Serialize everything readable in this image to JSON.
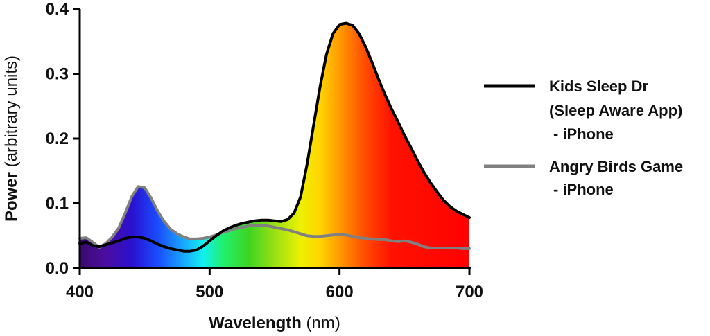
{
  "chart_data": {
    "type": "line",
    "title": "",
    "xlabel": {
      "bold": "Wavelength",
      "rest": " (nm)"
    },
    "ylabel": {
      "bold": "Power",
      "rest": " (arbitrary units)"
    },
    "xlim": [
      400,
      700
    ],
    "ylim": [
      0,
      0.4
    ],
    "xticks": [
      400,
      500,
      600,
      700
    ],
    "xtick_labels": [
      "400",
      "500",
      "600",
      "700"
    ],
    "yticks": [
      0,
      0.1,
      0.2,
      0.3,
      0.4
    ],
    "ytick_labels": [
      "0.0",
      "0.1",
      "0.2",
      "0.3",
      "0.4"
    ],
    "fill": "visible-spectrum gradient under the upper envelope of both series",
    "spectrum_colors": [
      {
        "nm": 400,
        "color": "#3a0a6e"
      },
      {
        "nm": 420,
        "color": "#4b0ea0"
      },
      {
        "nm": 440,
        "color": "#2a10d0"
      },
      {
        "nm": 460,
        "color": "#1a4cff"
      },
      {
        "nm": 480,
        "color": "#18a8ff"
      },
      {
        "nm": 495,
        "color": "#12f0f0"
      },
      {
        "nm": 510,
        "color": "#20f070"
      },
      {
        "nm": 530,
        "color": "#3ed422"
      },
      {
        "nm": 550,
        "color": "#98e014"
      },
      {
        "nm": 570,
        "color": "#eef000"
      },
      {
        "nm": 585,
        "color": "#ffd400"
      },
      {
        "nm": 600,
        "color": "#ff9a00"
      },
      {
        "nm": 620,
        "color": "#ff4a00"
      },
      {
        "nm": 640,
        "color": "#ff1200"
      },
      {
        "nm": 700,
        "color": "#ff0000"
      }
    ],
    "series": [
      {
        "name": "Kids Sleep Dr (Sleep Aware App) - iPhone",
        "legend_lines": [
          "Kids Sleep Dr",
          "(Sleep Aware App)",
          " - iPhone"
        ],
        "color": "#000000",
        "x": [
          400,
          405,
          410,
          415,
          420,
          425,
          430,
          435,
          440,
          445,
          450,
          455,
          460,
          465,
          470,
          475,
          480,
          485,
          490,
          495,
          500,
          505,
          510,
          515,
          520,
          525,
          530,
          535,
          540,
          545,
          550,
          555,
          560,
          565,
          570,
          575,
          580,
          585,
          590,
          595,
          600,
          605,
          610,
          615,
          620,
          625,
          630,
          635,
          640,
          645,
          650,
          655,
          660,
          665,
          670,
          675,
          680,
          685,
          690,
          695,
          700
        ],
        "y": [
          0.038,
          0.04,
          0.035,
          0.033,
          0.036,
          0.039,
          0.042,
          0.046,
          0.048,
          0.048,
          0.046,
          0.042,
          0.037,
          0.033,
          0.03,
          0.028,
          0.026,
          0.026,
          0.028,
          0.034,
          0.042,
          0.05,
          0.057,
          0.062,
          0.066,
          0.069,
          0.071,
          0.073,
          0.074,
          0.074,
          0.073,
          0.072,
          0.075,
          0.085,
          0.11,
          0.16,
          0.22,
          0.28,
          0.33,
          0.362,
          0.376,
          0.378,
          0.375,
          0.362,
          0.342,
          0.318,
          0.292,
          0.268,
          0.246,
          0.226,
          0.205,
          0.186,
          0.166,
          0.148,
          0.132,
          0.118,
          0.105,
          0.095,
          0.088,
          0.083,
          0.078
        ]
      },
      {
        "name": "Angry Birds Game - iPhone",
        "legend_lines": [
          "Angry Birds Game",
          " - iPhone"
        ],
        "color": "#808080",
        "x": [
          400,
          405,
          410,
          415,
          420,
          425,
          430,
          435,
          440,
          445,
          450,
          455,
          460,
          465,
          470,
          475,
          480,
          485,
          490,
          495,
          500,
          505,
          510,
          515,
          520,
          525,
          530,
          535,
          540,
          545,
          550,
          555,
          560,
          565,
          570,
          575,
          580,
          585,
          590,
          595,
          600,
          605,
          610,
          615,
          620,
          625,
          630,
          635,
          640,
          645,
          650,
          655,
          660,
          665,
          670,
          675,
          680,
          685,
          690,
          695,
          700
        ],
        "y": [
          0.046,
          0.047,
          0.04,
          0.032,
          0.038,
          0.048,
          0.062,
          0.085,
          0.11,
          0.126,
          0.124,
          0.108,
          0.088,
          0.072,
          0.06,
          0.053,
          0.048,
          0.045,
          0.045,
          0.046,
          0.048,
          0.051,
          0.055,
          0.058,
          0.061,
          0.063,
          0.065,
          0.066,
          0.066,
          0.065,
          0.063,
          0.061,
          0.059,
          0.056,
          0.053,
          0.05,
          0.049,
          0.049,
          0.05,
          0.051,
          0.052,
          0.051,
          0.049,
          0.047,
          0.046,
          0.045,
          0.044,
          0.044,
          0.042,
          0.041,
          0.042,
          0.04,
          0.037,
          0.033,
          0.031,
          0.031,
          0.031,
          0.031,
          0.031,
          0.03,
          0.03
        ]
      }
    ]
  }
}
